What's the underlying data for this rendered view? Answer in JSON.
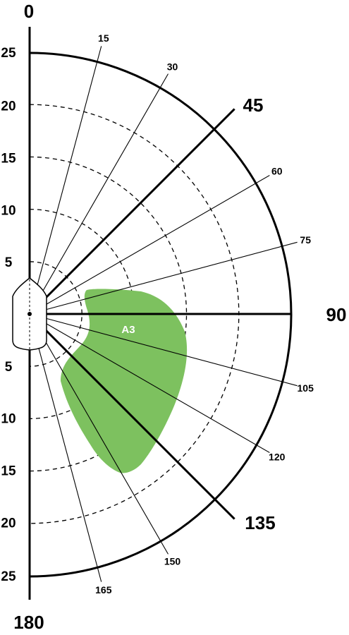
{
  "diagram": {
    "cardinal_labels": [
      {
        "key": "top",
        "text": "0"
      },
      {
        "key": "bottom",
        "text": "180"
      },
      {
        "key": "right",
        "text": "90"
      },
      {
        "key": "upper",
        "text": "45"
      },
      {
        "key": "lower",
        "text": "135"
      }
    ],
    "minor_angles": [
      15,
      30,
      60,
      75,
      105,
      120,
      150,
      165
    ],
    "major_angles": [
      45,
      90,
      135
    ],
    "radii": [
      5,
      10,
      15,
      20,
      25
    ],
    "outer_radius": 25,
    "region": {
      "label": "A3",
      "color": "#7dc15f"
    },
    "colors": {
      "stroke": "#000000",
      "background": "#ffffff"
    }
  }
}
